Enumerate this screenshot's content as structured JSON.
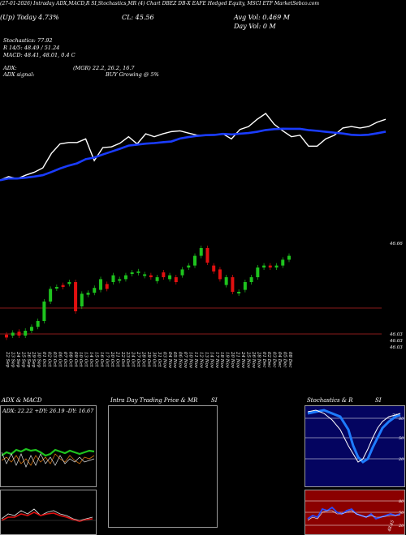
{
  "header": {
    "top_line": "(27-01-2026) Intraday ADX,MACD,R    SI,Stochastics,MR    (4) Chart DBEZ    DB-X EAFE Hedged Equity, MSCI ETF MarketSebco.com",
    "ticker_line": "(Up) Today 4.73%",
    "close_line": "CL: 45.56",
    "avg_vol_line": "Avg Vol: 0.469 M",
    "day_vol_line": "Day Vol: 0   M",
    "stoch_title": "Stochastics: 77.92",
    "stoch_values": "R 14/5: 48.49 / 51.24",
    "macd_values": "MACD: 48.41, 48.01, 0.4  C",
    "adx_title": "ADX:",
    "adx_values": "(MGR) 22.2, 26.2, 16.7",
    "adx_signal_label": "ADX  signal:",
    "adx_signal": "BUY Growing @ 5%"
  },
  "main_chart": {
    "price_label_top": "46.66",
    "price_label_mid": "46.03",
    "price_label_bot1": "46.03",
    "price_label_bot2": "46.03",
    "dates": [
      "22 Sep",
      "23 Sep",
      "24 Sep",
      "25 Sep",
      "26 Sep",
      "29 Sep",
      "30 Sep",
      "01 Oct",
      "02 Oct",
      "03 Oct",
      "06 Oct",
      "07 Oct",
      "08 Oct",
      "09 Oct",
      "10 Oct",
      "13 Oct",
      "14 Oct",
      "15 Oct",
      "16 Oct",
      "17 Oct",
      "20 Oct",
      "21 Oct",
      "22 Oct",
      "23 Oct",
      "24 Oct",
      "27 Oct",
      "28 Oct",
      "29 Oct",
      "30 Oct",
      "31 Oct",
      "03 Nov",
      "04 Nov",
      "05 Nov",
      "06 Nov",
      "07 Nov",
      "10 Nov",
      "11 Nov",
      "12 Nov",
      "13 Nov",
      "14 Nov",
      "17 Nov",
      "18 Nov",
      "19 Nov",
      "20 Nov",
      "21 Nov",
      "24 Nov",
      "25 Nov",
      "26 Nov",
      "28 Nov",
      "01 Dec",
      "02 Dec",
      "03 Dec",
      "04 Dec",
      "05 Dec",
      "08 Dec"
    ]
  },
  "bottom_panels": {
    "adx_macd_title": "ADX  & MACD",
    "adx_values_line": "ADX: 22.22  +DY: 26.19 -DY: 16.67",
    "intraday_title": "Intra  Day Trading Price  & MR",
    "intraday_si": "SI",
    "stoch_title": "Stochastics & R",
    "stoch_si": "SI",
    "stoch_ticks": [
      "80",
      "50",
      "20"
    ],
    "rsi_ticks": [
      "80",
      "50",
      "20"
    ],
    "rsi_last": "48.45",
    "stoch_last": "78"
  },
  "chart_data": {
    "type": "candlestick",
    "colors": {
      "up": "#1ec31e",
      "down": "#e01010",
      "price_line": "#ffffff",
      "ma_line": "#1a3cff"
    },
    "candles": [
      {
        "o": 46.01,
        "c": 45.98,
        "up": false
      },
      {
        "o": 46.0,
        "c": 46.03,
        "up": true
      },
      {
        "o": 46.04,
        "c": 46.0,
        "up": false
      },
      {
        "o": 46.0,
        "c": 46.05,
        "up": true
      },
      {
        "o": 46.05,
        "c": 46.09,
        "up": true
      },
      {
        "o": 46.09,
        "c": 46.15,
        "up": true
      },
      {
        "o": 46.15,
        "c": 46.35,
        "up": true
      },
      {
        "o": 46.35,
        "c": 46.48,
        "up": true
      },
      {
        "o": 46.49,
        "c": 46.5,
        "up": true
      },
      {
        "o": 46.52,
        "c": 46.5,
        "up": false
      },
      {
        "o": 46.53,
        "c": 46.55,
        "up": true
      },
      {
        "o": 46.55,
        "c": 46.25,
        "up": false
      },
      {
        "o": 46.3,
        "c": 46.43,
        "up": true
      },
      {
        "o": 46.42,
        "c": 46.44,
        "up": true
      },
      {
        "o": 46.44,
        "c": 46.49,
        "up": true
      },
      {
        "o": 46.47,
        "c": 46.58,
        "up": true
      },
      {
        "o": 46.53,
        "c": 46.48,
        "up": false
      },
      {
        "o": 46.55,
        "c": 46.62,
        "up": true
      },
      {
        "o": 46.57,
        "c": 46.58,
        "up": true
      },
      {
        "o": 46.58,
        "c": 46.62,
        "up": true
      },
      {
        "o": 46.65,
        "c": 46.65,
        "up": true
      },
      {
        "o": 46.65,
        "c": 46.66,
        "up": true
      },
      {
        "o": 46.63,
        "c": 46.63,
        "up": true
      },
      {
        "o": 46.62,
        "c": 46.6,
        "up": false
      },
      {
        "o": 46.56,
        "c": 46.6,
        "up": true
      },
      {
        "o": 46.65,
        "c": 46.6,
        "up": false
      },
      {
        "o": 46.58,
        "c": 46.62,
        "up": true
      },
      {
        "o": 46.6,
        "c": 46.55,
        "up": false
      },
      {
        "o": 46.62,
        "c": 46.68,
        "up": true
      },
      {
        "o": 46.7,
        "c": 46.72,
        "up": true
      },
      {
        "o": 46.72,
        "c": 46.82,
        "up": true
      },
      {
        "o": 46.82,
        "c": 46.9,
        "up": true
      },
      {
        "o": 46.9,
        "c": 46.75,
        "up": false
      },
      {
        "o": 46.72,
        "c": 46.66,
        "up": false
      },
      {
        "o": 46.68,
        "c": 46.58,
        "up": false
      },
      {
        "o": 46.52,
        "c": 46.6,
        "up": true
      },
      {
        "o": 46.6,
        "c": 46.45,
        "up": false
      },
      {
        "o": 46.45,
        "c": 46.45,
        "up": true
      },
      {
        "o": 46.47,
        "c": 46.55,
        "up": true
      },
      {
        "o": 46.55,
        "c": 46.6,
        "up": true
      },
      {
        "o": 46.6,
        "c": 46.7,
        "up": true
      },
      {
        "o": 46.7,
        "c": 46.72,
        "up": true
      },
      {
        "o": 46.72,
        "c": 46.7,
        "up": false
      },
      {
        "o": 46.7,
        "c": 46.72,
        "up": true
      },
      {
        "o": 46.72,
        "c": 46.78,
        "up": true
      },
      {
        "o": 46.78,
        "c": 46.82,
        "up": true
      }
    ]
  }
}
